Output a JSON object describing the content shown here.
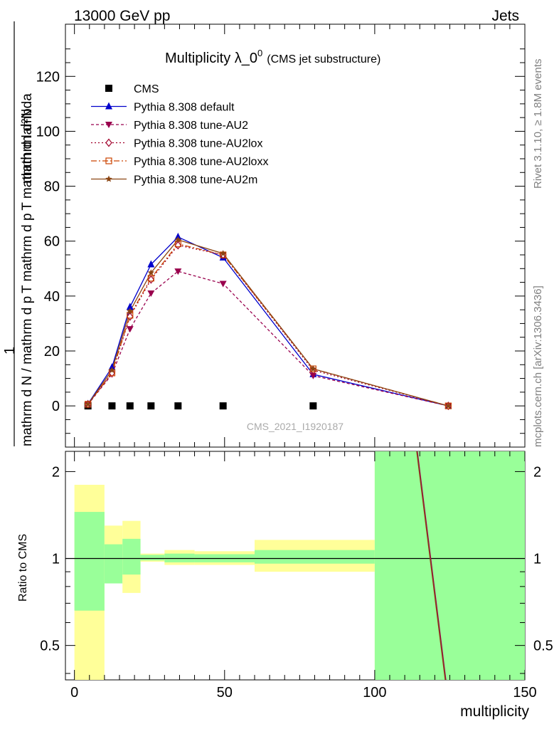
{
  "header": {
    "left": "13000 GeV pp",
    "right": "Jets"
  },
  "title": {
    "main": "Multiplicity λ_0",
    "sup": "0",
    "sub": "(CMS jet substructure)"
  },
  "side_labels": {
    "rivet": "Rivet 3.1.10, ≥ 1.8M events",
    "mcplots": "mcplots.cern.ch [arXiv:1306.3436]"
  },
  "watermark": "CMS_2021_I1920187",
  "ylabel": {
    "numerator": "mathrm d²N",
    "one": "1",
    "denominator": "mathrm d N / mathrm d p T mathrm d p T mathrm d lambda"
  },
  "ratio_label": "Ratio to CMS",
  "colors": {
    "cms": "#000000",
    "default": "#0000cc",
    "au2": "#99004d",
    "au2lox": "#a0002a",
    "au2loxx": "#cc4400",
    "au2m": "#8b4513",
    "band_inner": "#99ff99",
    "band_outer": "#ffff99"
  },
  "chart_data": [
    {
      "type": "line",
      "xlim": [
        -3,
        150
      ],
      "ylim": [
        -15,
        139
      ],
      "xticks": [
        0,
        50,
        100,
        150
      ],
      "yticks": [
        0,
        20,
        40,
        60,
        80,
        100,
        120
      ],
      "legend_placement": "top-left",
      "series": [
        {
          "name": "CMS",
          "marker": "square",
          "x": [
            4.5,
            12.5,
            18.5,
            25.5,
            34.5,
            49.5,
            79.5
          ],
          "y": [
            0,
            0,
            0,
            0,
            0,
            0,
            0
          ]
        },
        {
          "name": "Pythia 8.308 default",
          "marker": "triangle-up",
          "x": [
            4.5,
            12.5,
            18.5,
            25.5,
            34.5,
            49.5,
            79.5,
            124.5
          ],
          "y": [
            0.7,
            14,
            36,
            51.5,
            61.5,
            54,
            11.5,
            0
          ]
        },
        {
          "name": "Pythia 8.308 tune-AU2",
          "marker": "triangle-down",
          "x": [
            4.5,
            12.5,
            18.5,
            25.5,
            34.5,
            49.5,
            79.5,
            124.5
          ],
          "y": [
            0.5,
            11.5,
            28,
            41,
            49,
            44.5,
            11,
            0
          ]
        },
        {
          "name": "Pythia 8.308 tune-AU2lox",
          "marker": "diamond",
          "x": [
            4.5,
            12.5,
            18.5,
            25.5,
            34.5,
            49.5,
            79.5,
            124.5
          ],
          "y": [
            0.6,
            12,
            32.5,
            46,
            58.5,
            55,
            13,
            0
          ]
        },
        {
          "name": "Pythia 8.308 tune-AU2loxx",
          "marker": "square-open",
          "x": [
            4.5,
            12.5,
            18.5,
            25.5,
            34.5,
            49.5,
            79.5,
            124.5
          ],
          "y": [
            0.6,
            12,
            33,
            46.5,
            59,
            55,
            13.5,
            0
          ]
        },
        {
          "name": "Pythia 8.308 tune-AU2m",
          "marker": "star",
          "x": [
            4.5,
            12.5,
            18.5,
            25.5,
            34.5,
            49.5,
            79.5,
            124.5
          ],
          "y": [
            0.6,
            13,
            34.5,
            48.5,
            60.5,
            55.5,
            13.5,
            0
          ]
        }
      ]
    },
    {
      "type": "area",
      "xlabel": "multiplicity",
      "ylabel": "Ratio to CMS",
      "log_y": true,
      "xlim": [
        -3,
        150
      ],
      "ylim": [
        0.38,
        2.35
      ],
      "yticks": [
        0.5,
        1,
        2
      ],
      "xticks": [
        0,
        50,
        100,
        150
      ],
      "reference_line": 1,
      "bins": [
        {
          "x0": 0,
          "x1": 10,
          "inner": [
            0.66,
            1.45
          ],
          "outer": [
            0.38,
            1.8
          ]
        },
        {
          "x0": 10,
          "x1": 16,
          "inner": [
            0.82,
            1.12
          ],
          "outer": [
            0.82,
            1.3
          ]
        },
        {
          "x0": 16,
          "x1": 22,
          "inner": [
            0.88,
            1.17
          ],
          "outer": [
            0.76,
            1.35
          ]
        },
        {
          "x0": 22,
          "x1": 30,
          "inner": [
            0.985,
            1.03
          ],
          "outer": [
            0.975,
            1.04
          ]
        },
        {
          "x0": 30,
          "x1": 40,
          "inner": [
            0.97,
            1.04
          ],
          "outer": [
            0.95,
            1.07
          ]
        },
        {
          "x0": 40,
          "x1": 60,
          "inner": [
            0.97,
            1.035
          ],
          "outer": [
            0.95,
            1.06
          ]
        },
        {
          "x0": 60,
          "x1": 100,
          "inner": [
            0.96,
            1.07
          ],
          "outer": [
            0.9,
            1.16
          ]
        },
        {
          "x0": 100,
          "x1": 150,
          "inner": [
            0.38,
            2.35
          ],
          "outer": [
            0.38,
            2.35
          ]
        }
      ],
      "mc_line": {
        "x": [
          114,
          123.5
        ],
        "y": [
          2.35,
          0.38
        ]
      }
    }
  ]
}
